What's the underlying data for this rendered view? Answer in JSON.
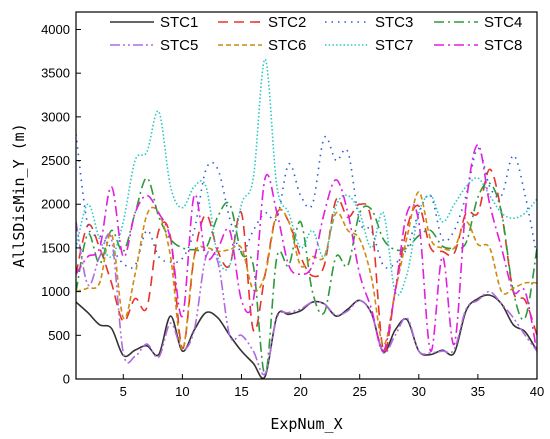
{
  "chart_data": {
    "type": "line",
    "title": "",
    "xlabel": "ExpNum_X",
    "ylabel": "AllSDisMin_Y (m)",
    "xlim": [
      1,
      40
    ],
    "ylim": [
      0,
      4200
    ],
    "x_ticks": [
      5,
      10,
      15,
      20,
      25,
      30,
      35,
      40
    ],
    "y_ticks": [
      0,
      500,
      1000,
      1500,
      2000,
      2500,
      3000,
      3500,
      4000
    ],
    "grid": false,
    "legend_position": "top",
    "x": [
      1,
      2,
      3,
      4,
      5,
      6,
      7,
      8,
      9,
      10,
      11,
      12,
      13,
      14,
      15,
      16,
      17,
      18,
      19,
      20,
      21,
      22,
      23,
      24,
      25,
      26,
      27,
      28,
      29,
      30,
      31,
      32,
      33,
      34,
      35,
      36,
      37,
      38,
      39,
      40
    ],
    "series": [
      {
        "name": "STC1",
        "color": "#333333",
        "dash": "solid",
        "values": [
          880,
          760,
          620,
          580,
          270,
          330,
          380,
          280,
          720,
          320,
          560,
          760,
          700,
          500,
          320,
          180,
          30,
          720,
          740,
          780,
          880,
          860,
          720,
          800,
          900,
          750,
          310,
          560,
          680,
          320,
          280,
          330,
          300,
          780,
          920,
          960,
          860,
          620,
          540,
          320
        ]
      },
      {
        "name": "STC2",
        "color": "#e8332a",
        "dash": "longdash",
        "values": [
          1200,
          1760,
          1500,
          1100,
          660,
          920,
          820,
          1700,
          1620,
          350,
          1400,
          1880,
          1460,
          1300,
          1900,
          560,
          1200,
          1900,
          1800,
          1400,
          1180,
          1300,
          2050,
          1850,
          2000,
          1800,
          330,
          1000,
          1730,
          1980,
          1500,
          1460,
          1440,
          1900,
          1900,
          2400,
          1900,
          1000,
          900,
          500
        ]
      },
      {
        "name": "STC3",
        "color": "#2a5bd7",
        "dash": "dot",
        "values": [
          2800,
          1760,
          1640,
          1500,
          1320,
          1300,
          1700,
          1400,
          1340,
          1380,
          1700,
          2400,
          2400,
          1840,
          1450,
          1700,
          1900,
          1840,
          2460,
          2100,
          2000,
          2760,
          2500,
          2600,
          1800,
          1700,
          1300,
          1320,
          1500,
          1900,
          2100,
          1600,
          1700,
          2100,
          2640,
          2200,
          2100,
          2560,
          2100,
          1400
        ]
      },
      {
        "name": "STC4",
        "color": "#2e9a3c",
        "dash": "dashdot",
        "values": [
          1000,
          1660,
          1320,
          1700,
          1460,
          1900,
          2300,
          1860,
          1600,
          1500,
          1480,
          1500,
          1860,
          2000,
          1440,
          1300,
          50,
          1400,
          1300,
          1800,
          1000,
          760,
          1400,
          1300,
          1900,
          1940,
          1600,
          1480,
          1500,
          1640,
          1700,
          1520,
          1500,
          1560,
          2080,
          2240,
          1900,
          1000,
          700,
          1500
        ]
      },
      {
        "name": "STC5",
        "color": "#b06ae0",
        "dash": "dashdotdot",
        "values": [
          1800,
          1080,
          1400,
          1600,
          300,
          260,
          400,
          250,
          640,
          340,
          560,
          1400,
          1340,
          500,
          500,
          320,
          60,
          700,
          760,
          800,
          880,
          860,
          730,
          780,
          900,
          750,
          300,
          500,
          700,
          320,
          300,
          320,
          340,
          800,
          900,
          1000,
          860,
          700,
          500,
          320
        ]
      },
      {
        "name": "STC6",
        "color": "#cf8a10",
        "dash": "shortdash",
        "values": [
          1000,
          1040,
          1100,
          1660,
          700,
          1200,
          1880,
          1900,
          1400,
          340,
          1400,
          1500,
          1460,
          1480,
          1500,
          1020,
          1200,
          1900,
          1800,
          1300,
          1400,
          1400,
          1900,
          1700,
          1600,
          1160,
          390,
          1000,
          1620,
          2140,
          1600,
          1500,
          1500,
          1800,
          1540,
          1500,
          1000,
          1040,
          1100,
          1100
        ]
      },
      {
        "name": "STC7",
        "color": "#2ac6c6",
        "dash": "densedot",
        "values": [
          1500,
          2000,
          1600,
          1400,
          1800,
          2500,
          2600,
          3060,
          2200,
          1960,
          2200,
          2200,
          1400,
          1300,
          2000,
          2300,
          3660,
          2200,
          1900,
          1500,
          1700,
          1400,
          1980,
          2100,
          1900,
          1500,
          1900,
          1000,
          1200,
          1900,
          2100,
          1800,
          2000,
          2200,
          2300,
          2100,
          1900,
          1840,
          1900,
          2060
        ]
      },
      {
        "name": "STC8",
        "color": "#e21ee0",
        "dash": "dashdot",
        "values": [
          1200,
          1400,
          1500,
          2200,
          1400,
          1900,
          2100,
          1900,
          1600,
          720,
          2100,
          1400,
          1500,
          1700,
          900,
          900,
          2300,
          1900,
          1300,
          1200,
          1300,
          1900,
          2280,
          1900,
          1200,
          800,
          320,
          1000,
          1900,
          1800,
          320,
          1400,
          400,
          2000,
          2680,
          2000,
          1500,
          1000,
          1000,
          300
        ]
      }
    ]
  }
}
